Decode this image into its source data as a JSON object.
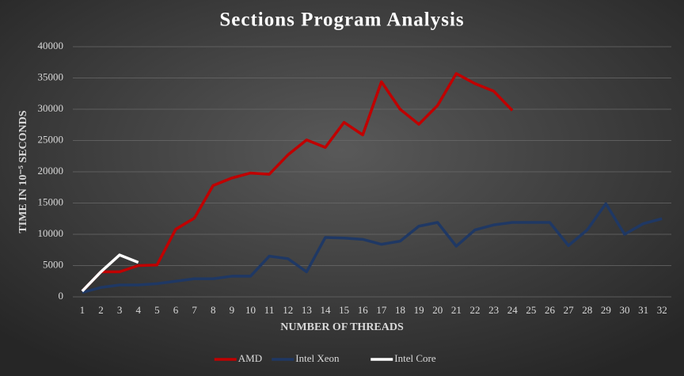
{
  "chart_data": {
    "type": "line",
    "title": "Sections Program Analysis",
    "xlabel": "NUMBER OF THREADS",
    "ylabel": "TIME IN 10⁻⁵ SECONDS",
    "categories": [
      "1",
      "2",
      "3",
      "4",
      "5",
      "6",
      "7",
      "8",
      "9",
      "10",
      "11",
      "12",
      "13",
      "14",
      "15",
      "16",
      "17",
      "18",
      "19",
      "20",
      "21",
      "22",
      "23",
      "24",
      "25",
      "26",
      "27",
      "28",
      "29",
      "30",
      "31",
      "32"
    ],
    "series": [
      {
        "name": "AMD",
        "color": "#c00000",
        "values": [
          900,
          4000,
          4000,
          5000,
          5100,
          10800,
          12600,
          17800,
          19000,
          19800,
          19600,
          22700,
          25100,
          23900,
          27900,
          25900,
          34400,
          30000,
          27600,
          30600,
          35700,
          34100,
          32900,
          29800,
          null,
          null,
          null,
          null,
          null,
          null,
          null,
          null
        ]
      },
      {
        "name": "Intel Xeon",
        "color": "#1f3864",
        "values": [
          700,
          1500,
          1900,
          1900,
          2100,
          2500,
          2900,
          2900,
          3300,
          3300,
          6500,
          6100,
          4000,
          9500,
          9400,
          9200,
          8400,
          8900,
          11300,
          11900,
          8100,
          10700,
          11500,
          11900,
          11900,
          11900,
          8200,
          10700,
          14900,
          10000,
          11700,
          12500
        ]
      },
      {
        "name": "Intel Core",
        "color": "#ffffff",
        "values": [
          900,
          4000,
          6700,
          5500,
          null,
          null,
          null,
          null,
          null,
          null,
          null,
          null,
          null,
          null,
          null,
          null,
          null,
          null,
          null,
          null,
          null,
          null,
          null,
          null,
          null,
          null,
          null,
          null,
          null,
          null,
          null,
          null
        ]
      }
    ],
    "ylim": [
      0,
      40000
    ],
    "yticks": [
      0,
      5000,
      10000,
      15000,
      20000,
      25000,
      30000,
      35000,
      40000
    ],
    "grid": true,
    "legend": "bottom"
  }
}
